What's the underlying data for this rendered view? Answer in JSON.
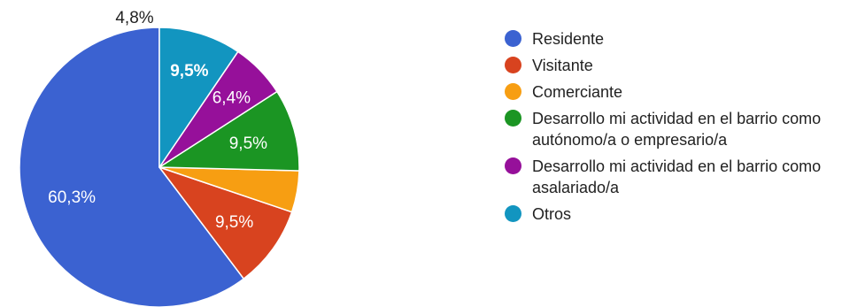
{
  "chart_data": {
    "type": "pie",
    "title": "",
    "slices": [
      {
        "label": "Residente",
        "value": 60.3,
        "value_label": "60,3%",
        "color": "#3b62d1"
      },
      {
        "label": "Visitante",
        "value": 9.5,
        "value_label": "9,5%",
        "color": "#d8431f"
      },
      {
        "label": "Comerciante",
        "value": 4.8,
        "value_label": "4,8%",
        "color": "#f79e12"
      },
      {
        "label": "Desarrollo mi actividad en el barrio como autónomo/a o empresario/a",
        "value": 9.5,
        "value_label": "9,5%",
        "color": "#1b9523"
      },
      {
        "label": "Desarrollo mi actividad en el barrio como asalariado/a",
        "value": 6.4,
        "value_label": "6,4%",
        "color": "#96109a"
      },
      {
        "label": "Otros",
        "value": 9.5,
        "value_label": "9,5%",
        "color": "#1295c0"
      }
    ],
    "start_angle_deg": 90,
    "direction": "counterclockwise",
    "legend_position": "right"
  }
}
